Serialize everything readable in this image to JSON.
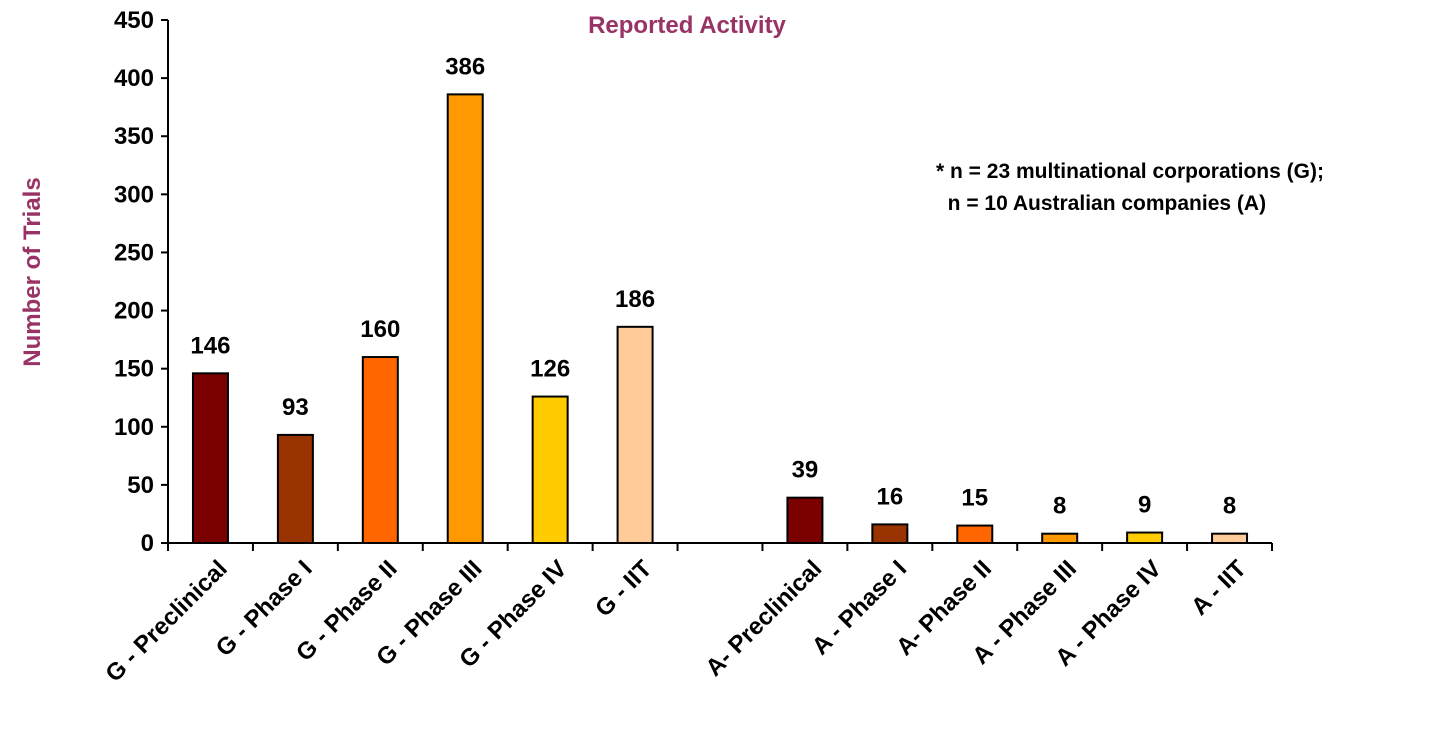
{
  "chart_data": {
    "type": "bar",
    "title": "Reported Activity",
    "ylabel": "Number of Trials",
    "xlabel": "",
    "ylim": [
      0,
      450
    ],
    "yticks": [
      0,
      50,
      100,
      150,
      200,
      250,
      300,
      350,
      400,
      450
    ],
    "grid": false,
    "legend": "none",
    "categories": [
      "G - Preclinical",
      "G - Phase I",
      "G - Phase II",
      "G - Phase III",
      "G - Phase IV",
      "G - IIT",
      "",
      "A- Preclinical",
      "A - Phase I",
      "A- Phase II",
      "A - Phase III",
      "A - Phase IV",
      "A - IIT"
    ],
    "values": [
      146,
      93,
      160,
      386,
      126,
      186,
      null,
      39,
      16,
      15,
      8,
      9,
      8
    ],
    "bar_colors": [
      "#7B0000",
      "#993300",
      "#FF6600",
      "#FF9900",
      "#FFCC00",
      "#FFCC99",
      "",
      "#7B0000",
      "#993300",
      "#FF6600",
      "#FF9900",
      "#FFCC00",
      "#FFCC99"
    ],
    "annotations": [
      "* n = 23 multinational corporations (G);",
      "  n = 10 Australian companies (A)"
    ]
  },
  "colors": {
    "title": "#993366",
    "ylabel": "#993366",
    "axis": "#000000",
    "bar_outline": "#000000"
  }
}
